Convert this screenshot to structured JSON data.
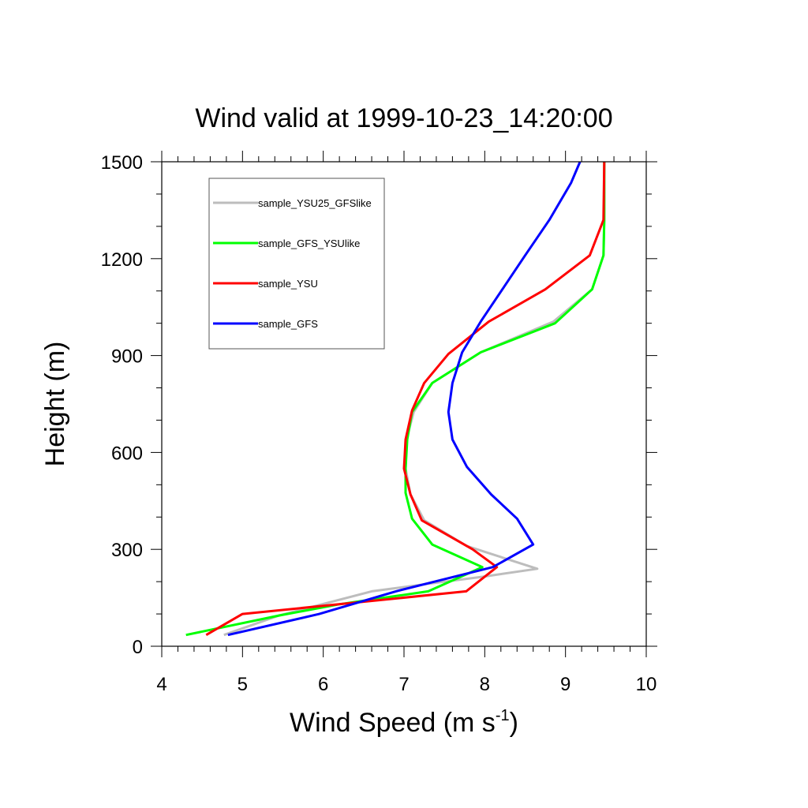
{
  "chart_data": {
    "type": "line",
    "title": "Wind valid at 1999-10-23_14:20:00",
    "xlabel": "Wind Speed (m s",
    "xlabel_sup": "-1",
    "xlabel_end": ")",
    "ylabel": "Height (m)",
    "xlim": [
      4,
      10
    ],
    "ylim": [
      0,
      1500
    ],
    "xticks": [
      4,
      5,
      6,
      7,
      8,
      9,
      10
    ],
    "yticks": [
      0,
      300,
      600,
      900,
      1200,
      1500
    ],
    "x_minor_step": 0.2,
    "y_minor_step": 100,
    "grid": false,
    "legend_position": "top-left",
    "series": [
      {
        "name": "sample_YSU25_GFSlike",
        "color": "#bdbdbd",
        "points": [
          [
            4.77,
            35
          ],
          [
            5.45,
            95
          ],
          [
            6.6,
            170
          ],
          [
            7.35,
            195
          ],
          [
            7.97,
            215
          ],
          [
            8.65,
            240
          ],
          [
            7.78,
            310
          ],
          [
            7.25,
            390
          ],
          [
            7.08,
            470
          ],
          [
            7.02,
            550
          ],
          [
            7.03,
            640
          ],
          [
            7.12,
            725
          ],
          [
            7.35,
            815
          ],
          [
            7.95,
            910
          ],
          [
            8.85,
            1005
          ],
          [
            9.33,
            1105
          ],
          [
            9.47,
            1210
          ],
          [
            9.48,
            1320
          ],
          [
            9.48,
            1500
          ]
        ]
      },
      {
        "name": "sample_GFS_YSUlike",
        "color": "#00ff00",
        "points": [
          [
            4.3,
            35
          ],
          [
            5.45,
            95
          ],
          [
            6.2,
            130
          ],
          [
            7.3,
            170
          ],
          [
            7.97,
            245
          ],
          [
            7.35,
            315
          ],
          [
            7.1,
            395
          ],
          [
            7.02,
            475
          ],
          [
            7.02,
            550
          ],
          [
            7.04,
            640
          ],
          [
            7.1,
            725
          ],
          [
            7.35,
            815
          ],
          [
            7.95,
            910
          ],
          [
            8.87,
            1000
          ],
          [
            9.33,
            1105
          ],
          [
            9.47,
            1210
          ],
          [
            9.48,
            1320
          ],
          [
            9.48,
            1500
          ]
        ]
      },
      {
        "name": "sample_YSU",
        "color": "#ff0000",
        "points": [
          [
            4.55,
            35
          ],
          [
            5.0,
            100
          ],
          [
            6.0,
            125
          ],
          [
            7.77,
            170
          ],
          [
            8.15,
            245
          ],
          [
            7.85,
            300
          ],
          [
            7.22,
            390
          ],
          [
            7.08,
            470
          ],
          [
            7.0,
            550
          ],
          [
            7.02,
            640
          ],
          [
            7.1,
            730
          ],
          [
            7.25,
            815
          ],
          [
            7.55,
            905
          ],
          [
            8.05,
            1005
          ],
          [
            8.75,
            1105
          ],
          [
            9.3,
            1210
          ],
          [
            9.47,
            1320
          ],
          [
            9.48,
            1500
          ]
        ]
      },
      {
        "name": "sample_GFS",
        "color": "#0000ff",
        "points": [
          [
            4.82,
            35
          ],
          [
            5.95,
            100
          ],
          [
            6.9,
            170
          ],
          [
            8.1,
            245
          ],
          [
            8.6,
            315
          ],
          [
            8.4,
            395
          ],
          [
            8.08,
            470
          ],
          [
            7.78,
            555
          ],
          [
            7.6,
            640
          ],
          [
            7.55,
            725
          ],
          [
            7.6,
            815
          ],
          [
            7.72,
            910
          ],
          [
            7.95,
            1005
          ],
          [
            8.5,
            1210
          ],
          [
            8.8,
            1320
          ],
          [
            9.07,
            1435
          ],
          [
            9.18,
            1500
          ]
        ]
      }
    ]
  }
}
